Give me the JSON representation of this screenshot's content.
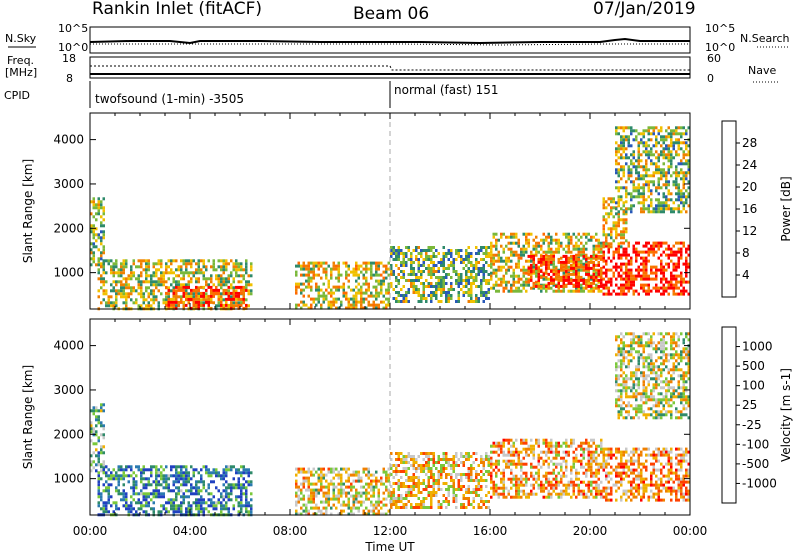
{
  "header": {
    "title": "Rankin Inlet (fitACF)",
    "beam": "Beam 06",
    "date": "07/Jan/2019"
  },
  "summary_panel": {
    "left_top_label": "N.Sky",
    "left_top_ticks": [
      "10^5",
      "10^0"
    ],
    "right_top_label": "N.Search",
    "right_top_ticks": [
      "10^5",
      "10^0"
    ],
    "freq_label_1": "Freq.",
    "freq_label_2": "[MHz]",
    "freq_ticks": [
      "18",
      "8"
    ],
    "nave_label": "Nave",
    "nave_ticks": [
      "60",
      "0"
    ],
    "cpid_label": "CPID",
    "cpid_segments": [
      {
        "start_hour": 0,
        "end_hour": 12,
        "label": "twofsound (1-min) -3505"
      },
      {
        "start_hour": 12,
        "end_hour": 24,
        "label": "normal (fast) 151"
      }
    ]
  },
  "chart_data": [
    {
      "type": "heatmap",
      "name": "power-panel",
      "ylabel": "Slant Range [km]",
      "xlabel": "Time UT",
      "x_range_hours": [
        0,
        24
      ],
      "y_range_km": [
        180,
        4600
      ],
      "y_ticks": [
        1000,
        2000,
        3000,
        4000
      ],
      "x_ticks": [
        "00:00",
        "04:00",
        "08:00",
        "12:00",
        "16:00",
        "20:00",
        "00:00"
      ],
      "colorbar": {
        "label": "Power [dB]",
        "ticks": [
          "4",
          "8",
          "12",
          "16",
          "20",
          "24",
          "28"
        ],
        "colors": [
          "#1010ff",
          "#2858b8",
          "#2e8a6a",
          "#7ab83a",
          "#f0c000",
          "#f08000",
          "#ff6a00",
          "#ff0000"
        ]
      },
      "regions": [
        {
          "t0": 0.0,
          "t1": 0.6,
          "r0": 1200,
          "r1": 2700,
          "level": 0.45
        },
        {
          "t0": 0.3,
          "t1": 6.5,
          "r0": 180,
          "r1": 1300,
          "level": 0.5
        },
        {
          "t0": 3.0,
          "t1": 6.2,
          "r0": 180,
          "r1": 700,
          "level": 0.8
        },
        {
          "t0": 8.2,
          "t1": 12.0,
          "r0": 180,
          "r1": 1250,
          "level": 0.55
        },
        {
          "t0": 12.0,
          "t1": 16.0,
          "r0": 350,
          "r1": 1600,
          "level": 0.4
        },
        {
          "t0": 16.0,
          "t1": 20.5,
          "r0": 600,
          "r1": 1900,
          "level": 0.55
        },
        {
          "t0": 17.5,
          "t1": 20.5,
          "r0": 700,
          "r1": 1400,
          "level": 0.9
        },
        {
          "t0": 20.5,
          "t1": 24.0,
          "r0": 500,
          "r1": 1700,
          "level": 0.95
        },
        {
          "t0": 20.5,
          "t1": 21.5,
          "r0": 1600,
          "r1": 2700,
          "level": 0.6
        },
        {
          "t0": 21.0,
          "t1": 24.0,
          "r0": 2400,
          "r1": 4300,
          "level": 0.45
        }
      ]
    },
    {
      "type": "heatmap",
      "name": "velocity-panel",
      "ylabel": "Slant Range [km]",
      "xlabel": "Time UT",
      "x_range_hours": [
        0,
        24
      ],
      "y_range_km": [
        180,
        4600
      ],
      "y_ticks": [
        1000,
        2000,
        3000,
        4000
      ],
      "x_ticks": [
        "00:00",
        "04:00",
        "08:00",
        "12:00",
        "16:00",
        "20:00",
        "00:00"
      ],
      "colorbar": {
        "label": "Velocity [m s-1]",
        "ticks": [
          "1000",
          "500",
          "100",
          "25",
          "-25",
          "-100",
          "-500",
          "-1000"
        ],
        "colors": [
          "#2040c0",
          "#2a7ab0",
          "#2e8a6a",
          "#7ac83a",
          "#c8c8c8",
          "#f0b000",
          "#f08000",
          "#ff4000",
          "#ff0000"
        ]
      },
      "regions": [
        {
          "t0": 0.0,
          "t1": 0.6,
          "r0": 1200,
          "r1": 2700,
          "level": 0.35
        },
        {
          "t0": 0.3,
          "t1": 6.5,
          "r0": 180,
          "r1": 1300,
          "level": 0.2
        },
        {
          "t0": 8.2,
          "t1": 12.0,
          "r0": 180,
          "r1": 1250,
          "level": 0.55
        },
        {
          "t0": 12.0,
          "t1": 16.0,
          "r0": 350,
          "r1": 1600,
          "level": 0.6
        },
        {
          "t0": 16.0,
          "t1": 20.5,
          "r0": 600,
          "r1": 1900,
          "level": 0.65
        },
        {
          "t0": 20.5,
          "t1": 24.0,
          "r0": 500,
          "r1": 1700,
          "level": 0.7
        },
        {
          "t0": 21.0,
          "t1": 24.0,
          "r0": 2400,
          "r1": 4300,
          "level": 0.5
        }
      ]
    }
  ]
}
